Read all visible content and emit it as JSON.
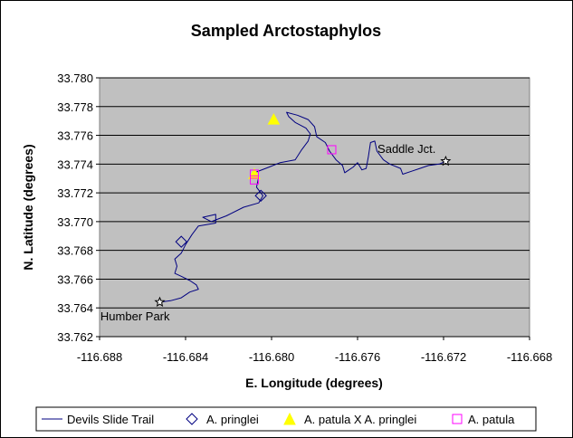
{
  "chart_data": {
    "type": "scatter",
    "title": "Sampled Arctostaphylos",
    "xlabel": "E. Longitude (degrees)",
    "ylabel": "N. Latitude (degrees)",
    "xlim": [
      -116.688,
      -116.668
    ],
    "ylim": [
      33.762,
      33.78
    ],
    "x_ticks": [
      "-116.688",
      "-116.684",
      "-116.680",
      "-116.676",
      "-116.672",
      "-116.668"
    ],
    "y_ticks": [
      "33.780",
      "33.778",
      "33.776",
      "33.774",
      "33.772",
      "33.770",
      "33.768",
      "33.766",
      "33.764",
      "33.762"
    ],
    "grid": true,
    "legend_position": "bottom",
    "series": [
      {
        "name": "Devils Slide Trail",
        "kind": "line",
        "color": "#000080",
        "points": [
          [
            -116.6852,
            33.7644
          ],
          [
            -116.6847,
            33.7645
          ],
          [
            -116.6842,
            33.7647
          ],
          [
            -116.6838,
            33.7651
          ],
          [
            -116.6834,
            33.7653
          ],
          [
            -116.6835,
            33.7656
          ],
          [
            -116.6838,
            33.7659
          ],
          [
            -116.6842,
            33.7662
          ],
          [
            -116.6845,
            33.7664
          ],
          [
            -116.6844,
            33.7669
          ],
          [
            -116.6845,
            33.7674
          ],
          [
            -116.6842,
            33.7678
          ],
          [
            -116.684,
            33.7684
          ],
          [
            -116.6837,
            33.7691
          ],
          [
            -116.6834,
            33.7697
          ],
          [
            -116.683,
            33.7698
          ],
          [
            -116.6826,
            33.7699
          ],
          [
            -116.6826,
            33.7705
          ],
          [
            -116.6832,
            33.7703
          ],
          [
            -116.6828,
            33.77
          ],
          [
            -116.6821,
            33.7704
          ],
          [
            -116.6813,
            33.771
          ],
          [
            -116.6806,
            33.7713
          ],
          [
            -116.6804,
            33.7718
          ],
          [
            -116.6807,
            33.7724
          ],
          [
            -116.6806,
            33.7731
          ],
          [
            -116.6808,
            33.7734
          ],
          [
            -116.6801,
            33.7738
          ],
          [
            -116.6796,
            33.7741
          ],
          [
            -116.6789,
            33.7743
          ],
          [
            -116.6786,
            33.775
          ],
          [
            -116.6783,
            33.7756
          ],
          [
            -116.6782,
            33.7761
          ],
          [
            -116.6784,
            33.7765
          ],
          [
            -116.6789,
            33.7769
          ],
          [
            -116.6792,
            33.7773
          ],
          [
            -116.6793,
            33.7776
          ],
          [
            -116.6788,
            33.7774
          ],
          [
            -116.6783,
            33.7771
          ],
          [
            -116.678,
            33.7766
          ],
          [
            -116.6779,
            33.7759
          ],
          [
            -116.6775,
            33.7755
          ],
          [
            -116.6773,
            33.7749
          ],
          [
            -116.677,
            33.7743
          ],
          [
            -116.6767,
            33.7739
          ],
          [
            -116.6766,
            33.7734
          ],
          [
            -116.6762,
            33.7738
          ],
          [
            -116.676,
            33.7741
          ],
          [
            -116.6758,
            33.7736
          ],
          [
            -116.6756,
            33.7737
          ],
          [
            -116.6755,
            33.7745
          ],
          [
            -116.6754,
            33.7755
          ],
          [
            -116.6752,
            33.7756
          ],
          [
            -116.6751,
            33.7749
          ],
          [
            -116.6748,
            33.7743
          ],
          [
            -116.6745,
            33.774
          ],
          [
            -116.674,
            33.7737
          ],
          [
            -116.6739,
            33.7733
          ],
          [
            -116.6735,
            33.7735
          ],
          [
            -116.6731,
            33.7737
          ],
          [
            -116.6727,
            33.7739
          ],
          [
            -116.6722,
            33.774
          ],
          [
            -116.6719,
            33.7742
          ]
        ]
      },
      {
        "name": "A. pringlei",
        "kind": "marker",
        "marker": "diamond",
        "color": "#000080",
        "points": [
          [
            -116.6842,
            33.7686
          ],
          [
            -116.6805,
            33.7718
          ]
        ]
      },
      {
        "name": "A. patula X A. pringlei",
        "kind": "marker",
        "marker": "triangle",
        "color": "#ffff00",
        "points": [
          [
            -116.6799,
            33.7771
          ],
          [
            -116.6808,
            33.7733
          ]
        ]
      },
      {
        "name": "A. patula",
        "kind": "marker",
        "marker": "square",
        "color": "#ff00ff",
        "points": [
          [
            -116.6772,
            33.775
          ],
          [
            -116.6808,
            33.7733
          ],
          [
            -116.6808,
            33.7729
          ]
        ]
      },
      {
        "name": "Endpoints",
        "kind": "marker",
        "marker": "star",
        "color": "#000000",
        "legend": false,
        "points": [
          [
            -116.6852,
            33.7644
          ],
          [
            -116.6719,
            33.7742
          ]
        ]
      }
    ],
    "annotations": [
      {
        "text": "Humber Park",
        "x": -116.6852,
        "y": 33.7644,
        "anchor": "below"
      },
      {
        "text": "Saddle Jct.",
        "x": -116.6719,
        "y": 33.7742,
        "anchor": "above-left"
      }
    ]
  }
}
